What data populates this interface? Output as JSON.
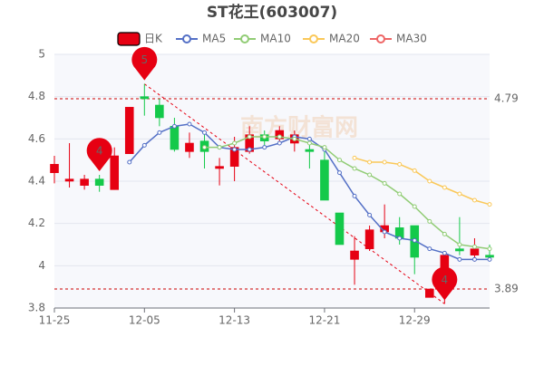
{
  "chart_data": {
    "type": "candlestick",
    "title": "ST花王(603007)",
    "watermark": "南方财富网",
    "categories": [
      "11-25",
      null,
      null,
      null,
      null,
      null,
      "12-05",
      null,
      null,
      null,
      null,
      null,
      "12-13",
      null,
      null,
      null,
      null,
      null,
      "12-21",
      null,
      null,
      null,
      null,
      null,
      "12-29",
      null,
      null,
      null,
      null,
      null
    ],
    "candles": {
      "name": "日K",
      "up_color": "#e60012",
      "down_color": "#14c94a",
      "open": [
        4.44,
        4.4,
        4.38,
        4.41,
        4.36,
        4.53,
        4.8,
        4.76,
        4.66,
        4.54,
        4.59,
        4.46,
        4.47,
        4.54,
        4.62,
        4.6,
        4.58,
        4.55,
        4.5,
        4.25,
        4.03,
        4.08,
        4.16,
        4.18,
        4.19,
        3.85,
        3.97,
        4.08,
        4.05,
        4.05
      ],
      "high": [
        4.52,
        4.58,
        4.43,
        4.43,
        4.56,
        4.75,
        4.86,
        4.79,
        4.7,
        4.63,
        4.64,
        4.51,
        4.61,
        4.66,
        4.64,
        4.66,
        4.64,
        4.61,
        4.55,
        4.25,
        4.14,
        4.19,
        4.29,
        4.23,
        4.19,
        3.89,
        4.06,
        4.23,
        4.13,
        4.1
      ],
      "low": [
        4.39,
        4.37,
        4.36,
        4.35,
        4.36,
        4.53,
        4.71,
        4.66,
        4.54,
        4.51,
        4.46,
        4.38,
        4.4,
        4.53,
        4.57,
        4.57,
        4.54,
        4.46,
        4.31,
        4.1,
        3.91,
        4.07,
        4.13,
        4.1,
        3.96,
        3.85,
        3.82,
        4.05,
        4.02,
        4.03
      ],
      "close": [
        4.48,
        4.41,
        4.41,
        4.38,
        4.52,
        4.75,
        4.79,
        4.7,
        4.55,
        4.58,
        4.54,
        4.47,
        4.56,
        4.62,
        4.59,
        4.64,
        4.62,
        4.54,
        4.31,
        4.1,
        4.07,
        4.17,
        4.19,
        4.13,
        4.04,
        3.89,
        4.05,
        4.07,
        4.08,
        4.04
      ]
    },
    "series": [
      {
        "name": "MA5",
        "color": "#5470c6",
        "values": [
          null,
          null,
          null,
          null,
          null,
          4.49,
          4.57,
          4.63,
          4.66,
          4.67,
          4.63,
          4.56,
          4.55,
          4.55,
          4.56,
          4.58,
          4.61,
          4.6,
          4.55,
          4.44,
          4.33,
          4.24,
          4.16,
          4.13,
          4.12,
          4.08,
          4.06,
          4.03,
          4.03,
          4.03
        ]
      },
      {
        "name": "MA10",
        "color": "#91cc75",
        "values": [
          null,
          null,
          null,
          null,
          null,
          null,
          null,
          null,
          null,
          null,
          4.56,
          4.56,
          4.58,
          4.61,
          4.61,
          4.61,
          4.6,
          4.58,
          4.56,
          4.5,
          4.46,
          4.43,
          4.39,
          4.34,
          4.28,
          4.21,
          4.15,
          4.1,
          4.09,
          4.08
        ]
      },
      {
        "name": "MA20",
        "color": "#fac858",
        "values": [
          null,
          null,
          null,
          null,
          null,
          null,
          null,
          null,
          null,
          null,
          null,
          null,
          null,
          null,
          null,
          null,
          null,
          null,
          null,
          null,
          4.51,
          4.49,
          4.49,
          4.48,
          4.45,
          4.4,
          4.37,
          4.34,
          4.31,
          4.29
        ]
      },
      {
        "name": "MA30",
        "color": "#ee6666",
        "values": [
          null,
          null,
          null,
          null,
          null,
          null,
          null,
          null,
          null,
          null,
          null,
          null,
          null,
          null,
          null,
          null,
          null,
          null,
          null,
          null,
          null,
          null,
          null,
          null,
          null,
          null,
          null,
          null,
          null,
          null
        ]
      }
    ],
    "hlines": [
      4.79,
      3.89
    ],
    "pins": [
      "5",
      "4",
      "4"
    ],
    "ylim": [
      3.8,
      5
    ],
    "yticks": [
      3.8,
      4,
      4.2,
      4.4,
      4.6,
      4.8,
      5
    ],
    "grid": true
  }
}
